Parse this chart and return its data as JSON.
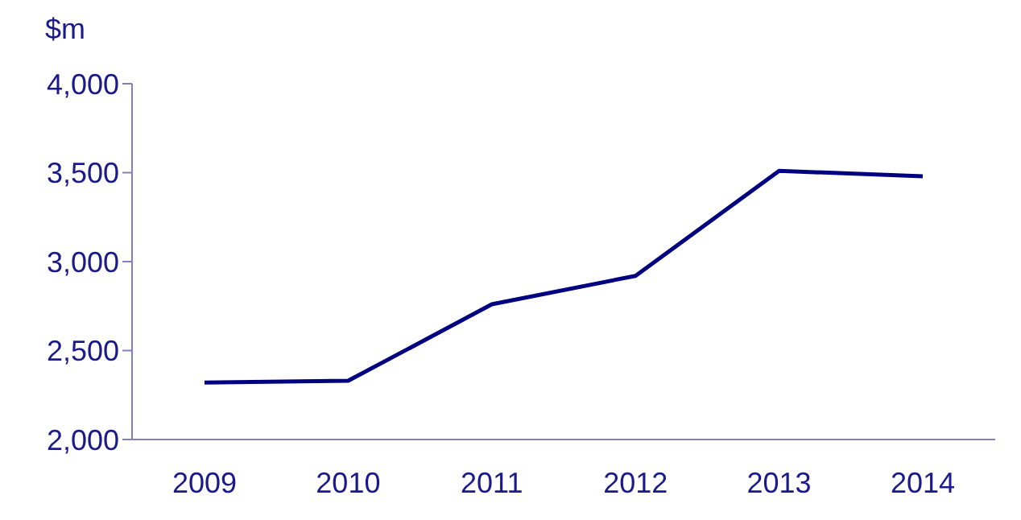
{
  "chart_data": {
    "type": "line",
    "ylabel": "$m",
    "categories": [
      "2009",
      "2010",
      "2011",
      "2012",
      "2013",
      "2014"
    ],
    "series": [
      {
        "color": "#000080",
        "values": [
          2320,
          2330,
          2760,
          2920,
          3510,
          3480
        ]
      }
    ],
    "ylim": [
      2000,
      4000
    ],
    "yticks": [
      {
        "value": 2000,
        "label": "2,000"
      },
      {
        "value": 2500,
        "label": "2,500"
      },
      {
        "value": 3000,
        "label": "3,000"
      },
      {
        "value": 3500,
        "label": "3,500"
      },
      {
        "value": 4000,
        "label": "4,000"
      }
    ],
    "grid": false,
    "legend": false,
    "marker": "none",
    "line_style": "solid"
  }
}
